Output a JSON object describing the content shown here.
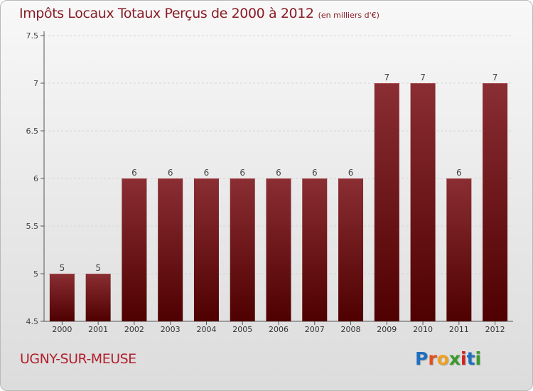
{
  "chart_data": {
    "type": "bar",
    "title": "Impôts Locaux Totaux Perçus de 2000 à 2012",
    "unit_note": "(en milliers d'€)",
    "categories": [
      "2000",
      "2001",
      "2002",
      "2003",
      "2004",
      "2005",
      "2006",
      "2007",
      "2008",
      "2009",
      "2010",
      "2011",
      "2012"
    ],
    "values": [
      5,
      5,
      6,
      6,
      6,
      6,
      6,
      6,
      6,
      7,
      7,
      6,
      7
    ],
    "data_labels": [
      "5",
      "5",
      "6",
      "6",
      "6",
      "6",
      "6",
      "6",
      "6",
      "7",
      "7",
      "6",
      "7"
    ],
    "ylim": [
      4.5,
      7.5
    ],
    "yticks": [
      "4.5",
      "5",
      "5.5",
      "6",
      "6.5",
      "7",
      "7.5"
    ],
    "xlabel": "",
    "ylabel": "",
    "grid": true,
    "bar_color": "#7a1a1f",
    "bar_color_dark": "#4f0000"
  },
  "footer": {
    "commune": "UGNY-SUR-MEUSE",
    "brand": "Proxiti",
    "brand_colors": [
      "#1f6fc0",
      "#e05020",
      "#f0a020",
      "#3a9a2a",
      "#d02020",
      "#1f6fc0",
      "#3a9a2a"
    ]
  }
}
